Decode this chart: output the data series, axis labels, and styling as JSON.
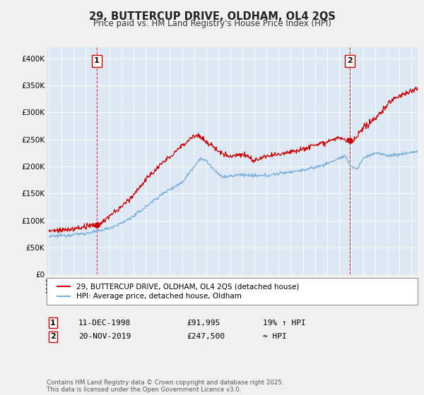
{
  "title_line1": "29, BUTTERCUP DRIVE, OLDHAM, OL4 2QS",
  "title_line2": "Price paid vs. HM Land Registry's House Price Index (HPI)",
  "ylim": [
    0,
    420000
  ],
  "yticks": [
    0,
    50000,
    100000,
    150000,
    200000,
    250000,
    300000,
    350000,
    400000
  ],
  "ytick_labels": [
    "£0",
    "£50K",
    "£100K",
    "£150K",
    "£200K",
    "£250K",
    "£300K",
    "£350K",
    "£400K"
  ],
  "background_color": "#f0f0f0",
  "plot_background": "#dce9f5",
  "grid_color": "#ffffff",
  "red_color": "#cc0000",
  "blue_color": "#7aaed6",
  "marker1_year": 1998.95,
  "marker1_value": 91995,
  "marker2_year": 2019.9,
  "marker2_value": 247500,
  "legend_line1": "29, BUTTERCUP DRIVE, OLDHAM, OL4 2QS (detached house)",
  "legend_line2": "HPI: Average price, detached house, Oldham",
  "ann1_label": "1",
  "ann2_label": "2",
  "footer_text": "Contains HM Land Registry data © Crown copyright and database right 2025.\nThis data is licensed under the Open Government Licence v3.0.",
  "table_row1": [
    "1",
    "11-DEC-1998",
    "£91,995",
    "19% ↑ HPI"
  ],
  "table_row2": [
    "2",
    "20-NOV-2019",
    "£247,500",
    "≈ HPI"
  ]
}
